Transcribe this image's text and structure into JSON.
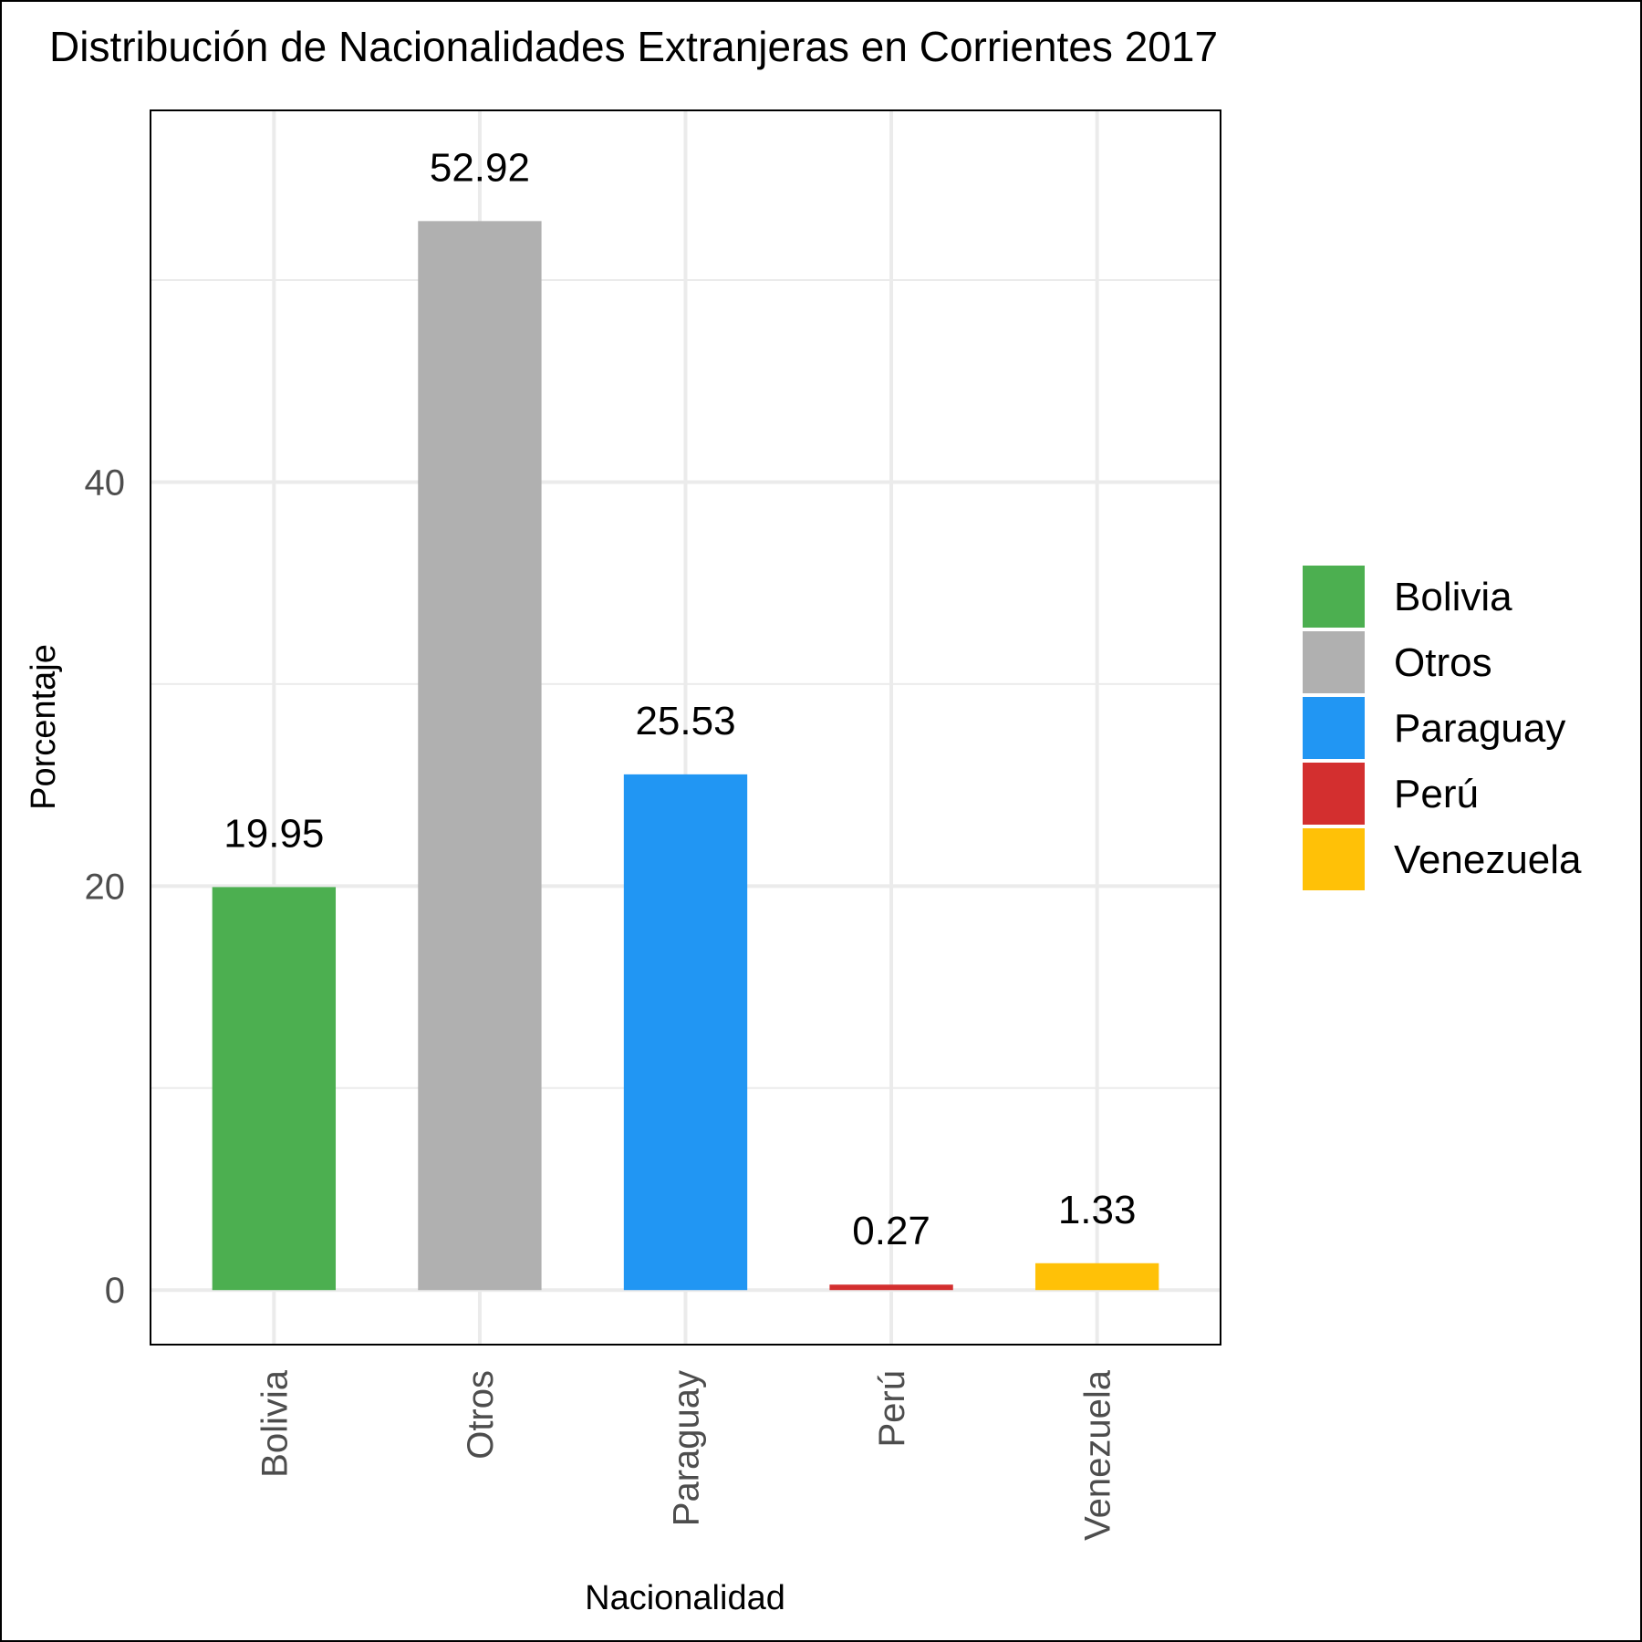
{
  "chart_data": {
    "type": "bar",
    "title": "Distribución de Nacionalidades Extranjeras en Corrientes 2017",
    "xlabel": "Nacionalidad",
    "ylabel": "Porcentaje",
    "categories": [
      "Bolivia",
      "Otros",
      "Paraguay",
      "Perú",
      "Venezuela"
    ],
    "values": [
      19.95,
      52.92,
      25.53,
      0.27,
      1.33
    ],
    "data_labels": [
      "19.95",
      "52.92",
      "25.53",
      "0.27",
      "1.33"
    ],
    "colors": [
      "#4caf50",
      "#b0b0b0",
      "#2196f3",
      "#d32f2f",
      "#ffc107"
    ],
    "ylim": [
      -2.7,
      58.4
    ],
    "yticks": [
      0,
      20,
      40
    ],
    "ytick_labels": [
      "0",
      "20",
      "40"
    ],
    "grid": true,
    "legend": {
      "placement": "right",
      "entries": [
        "Bolivia",
        "Otros",
        "Paraguay",
        "Perú",
        "Venezuela"
      ]
    }
  }
}
